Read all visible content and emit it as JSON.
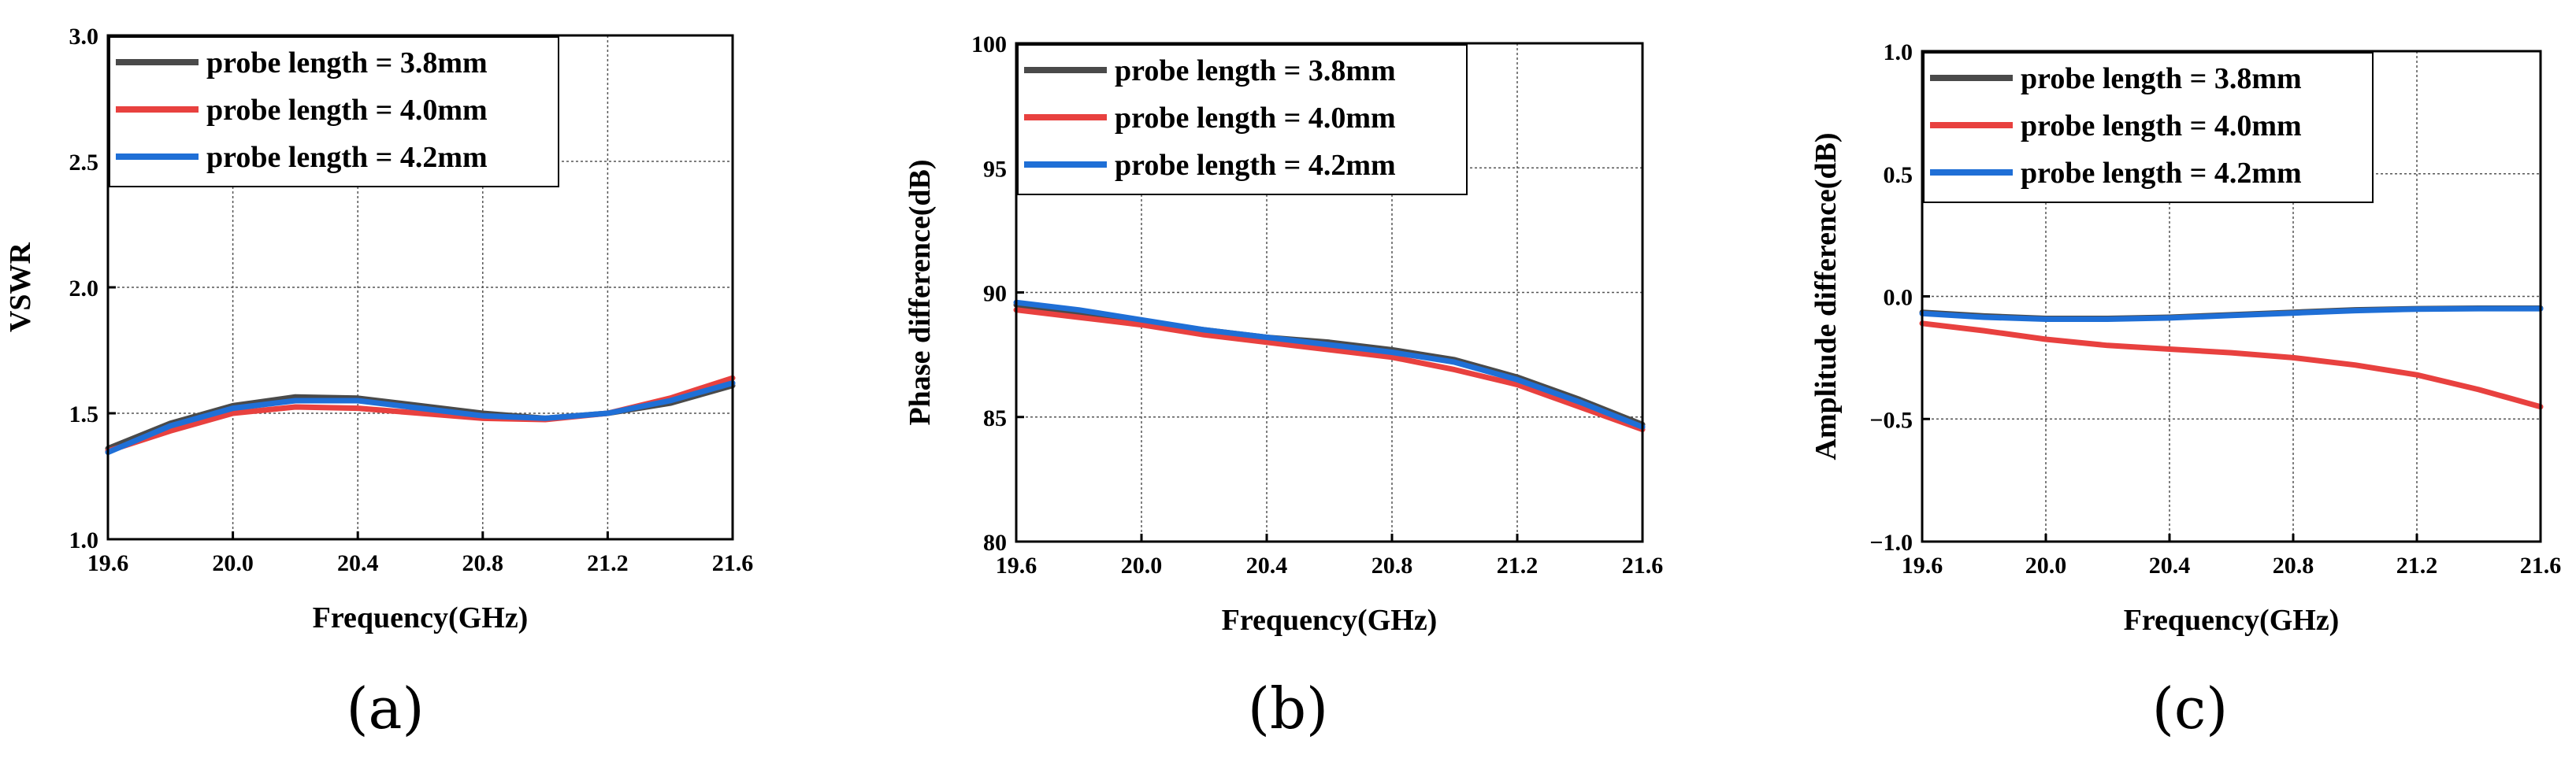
{
  "chart_data": [
    {
      "id": "a",
      "type": "line",
      "caption": "(a)",
      "xlabel": "Frequency(GHz)",
      "ylabel": "VSWR",
      "xlim": [
        19.6,
        21.6
      ],
      "ylim": [
        1.0,
        3.0
      ],
      "xticks": [
        19.6,
        20.0,
        20.4,
        20.8,
        21.2,
        21.6
      ],
      "xtick_labels": [
        "19.6",
        "20.0",
        "20.4",
        "20.8",
        "21.2",
        "21.6"
      ],
      "yticks": [
        1.0,
        1.5,
        2.0,
        2.5,
        3.0
      ],
      "ytick_labels": [
        "1.0",
        "1.5",
        "2.0",
        "2.5",
        "3.0"
      ],
      "grid": true,
      "legend_position": "top-left",
      "x": [
        19.6,
        19.8,
        20.0,
        20.2,
        20.4,
        20.6,
        20.8,
        21.0,
        21.2,
        21.4,
        21.6
      ],
      "series": [
        {
          "name": "probe length = 3.8mm",
          "color": "#4a4a4a",
          "values": [
            1.36,
            1.46,
            1.53,
            1.565,
            1.56,
            1.53,
            1.5,
            1.48,
            1.5,
            1.54,
            1.61
          ]
        },
        {
          "name": "probe length = 4.0mm",
          "color": "#e8413f",
          "values": [
            1.35,
            1.43,
            1.5,
            1.525,
            1.52,
            1.5,
            1.48,
            1.475,
            1.5,
            1.56,
            1.64
          ]
        },
        {
          "name": "probe length = 4.2mm",
          "color": "#1f6fd6",
          "values": [
            1.345,
            1.45,
            1.52,
            1.55,
            1.55,
            1.52,
            1.49,
            1.48,
            1.5,
            1.55,
            1.62
          ]
        }
      ]
    },
    {
      "id": "b",
      "type": "line",
      "caption": "(b)",
      "xlabel": "Frequency(GHz)",
      "ylabel": "Phase difference(dB)",
      "xlim": [
        19.6,
        21.6
      ],
      "ylim": [
        80,
        100
      ],
      "xticks": [
        19.6,
        20.0,
        20.4,
        20.8,
        21.2,
        21.6
      ],
      "xtick_labels": [
        "19.6",
        "20.0",
        "20.4",
        "20.8",
        "21.2",
        "21.6"
      ],
      "yticks": [
        80,
        85,
        90,
        95,
        100
      ],
      "ytick_labels": [
        "80",
        "85",
        "90",
        "95",
        "100"
      ],
      "grid": true,
      "legend_position": "top-left",
      "x": [
        19.6,
        19.8,
        20.0,
        20.2,
        20.4,
        20.6,
        20.8,
        21.0,
        21.2,
        21.4,
        21.6
      ],
      "series": [
        {
          "name": "probe length = 3.8mm",
          "color": "#4a4a4a",
          "values": [
            89.5,
            89.2,
            88.8,
            88.5,
            88.2,
            88.0,
            87.7,
            87.3,
            86.6,
            85.7,
            84.7
          ]
        },
        {
          "name": "probe length = 4.0mm",
          "color": "#e8413f",
          "values": [
            89.3,
            89.0,
            88.7,
            88.3,
            88.0,
            87.7,
            87.4,
            86.9,
            86.3,
            85.4,
            84.5
          ]
        },
        {
          "name": "probe length = 4.2mm",
          "color": "#1f6fd6",
          "values": [
            89.6,
            89.3,
            88.9,
            88.5,
            88.2,
            87.9,
            87.6,
            87.2,
            86.5,
            85.6,
            84.6
          ]
        }
      ]
    },
    {
      "id": "c",
      "type": "line",
      "caption": "(c)",
      "xlabel": "Frequency(GHz)",
      "ylabel": "Amplitude difference(dB)",
      "xlim": [
        19.6,
        21.6
      ],
      "ylim": [
        -1.0,
        1.0
      ],
      "xticks": [
        19.6,
        20.0,
        20.4,
        20.8,
        21.2,
        21.6
      ],
      "xtick_labels": [
        "19.6",
        "20.0",
        "20.4",
        "20.8",
        "21.2",
        "21.6"
      ],
      "yticks": [
        -1.0,
        -0.5,
        0.0,
        0.5,
        1.0
      ],
      "ytick_labels": [
        "−1.0",
        "−0.5",
        "0.0",
        "0.5",
        "1.0"
      ],
      "grid": true,
      "legend_position": "top-left",
      "x": [
        19.6,
        19.8,
        20.0,
        20.2,
        20.4,
        20.6,
        20.8,
        21.0,
        21.2,
        21.4,
        21.6
      ],
      "series": [
        {
          "name": "probe length = 3.8mm",
          "color": "#4a4a4a",
          "values": [
            -0.065,
            -0.08,
            -0.09,
            -0.09,
            -0.085,
            -0.075,
            -0.065,
            -0.055,
            -0.05,
            -0.048,
            -0.048
          ]
        },
        {
          "name": "probe length = 4.0mm",
          "color": "#e8413f",
          "values": [
            -0.11,
            -0.14,
            -0.175,
            -0.2,
            -0.215,
            -0.23,
            -0.25,
            -0.28,
            -0.32,
            -0.38,
            -0.45
          ]
        },
        {
          "name": "probe length = 4.2mm",
          "color": "#1f6fd6",
          "values": [
            -0.07,
            -0.085,
            -0.093,
            -0.093,
            -0.088,
            -0.078,
            -0.068,
            -0.058,
            -0.052,
            -0.05,
            -0.05
          ]
        }
      ]
    }
  ]
}
